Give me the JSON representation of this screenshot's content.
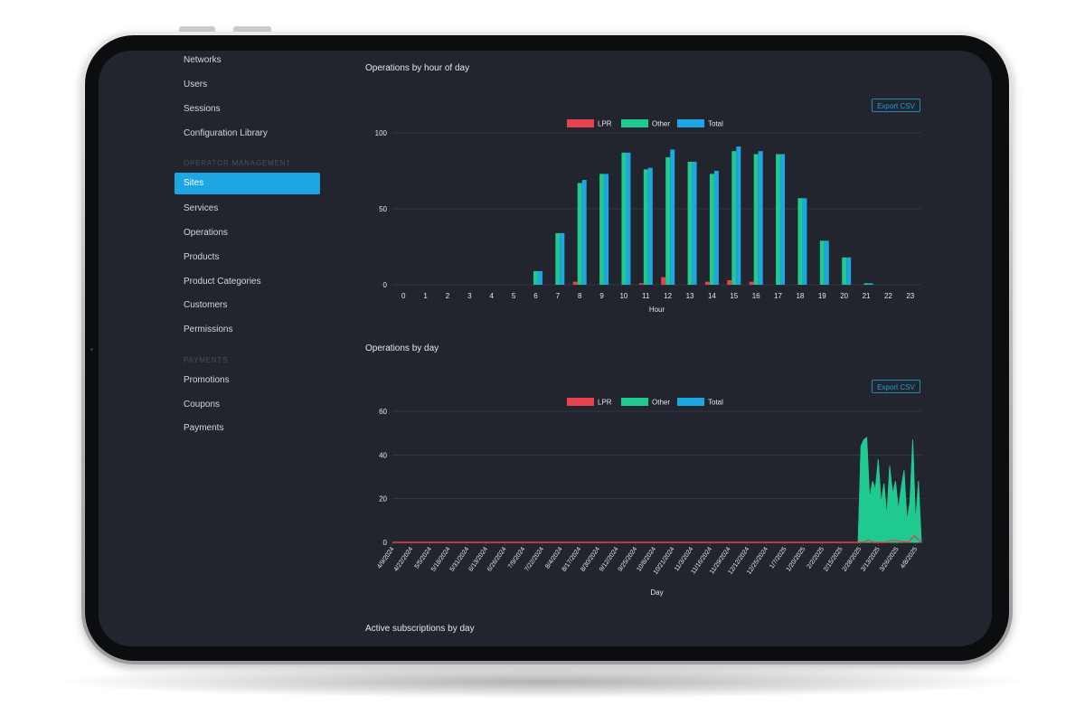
{
  "sidebar": {
    "items_top": [
      {
        "label": "Networks"
      },
      {
        "label": "Users"
      },
      {
        "label": "Sessions"
      },
      {
        "label": "Configuration Library"
      }
    ],
    "section_operator": "OPERATOR MANAGEMENT",
    "items_operator": [
      {
        "label": "Sites",
        "active": true
      },
      {
        "label": "Services"
      },
      {
        "label": "Operations"
      },
      {
        "label": "Products"
      },
      {
        "label": "Product Categories"
      },
      {
        "label": "Customers"
      },
      {
        "label": "Permissions"
      }
    ],
    "section_payments": "PAYMENTS",
    "items_payments": [
      {
        "label": "Promotions"
      },
      {
        "label": "Coupons"
      },
      {
        "label": "Payments"
      }
    ]
  },
  "hour_section": {
    "title": "Operations by hour of day",
    "export_label": "Export CSV"
  },
  "day_section": {
    "title": "Operations by day",
    "export_label": "Export CSV"
  },
  "subs_section": {
    "title": "Active subscriptions by day"
  },
  "colors": {
    "lpr": "#e8414f",
    "other": "#20c98d",
    "total": "#1ea6e2",
    "accent": "#1ea6e2",
    "background": "#22252d"
  },
  "chart_data": [
    {
      "type": "bar",
      "title": "Operations by hour of day",
      "xlabel": "Hour",
      "ylabel": "",
      "ylim": [
        0,
        100
      ],
      "yticks": [
        0,
        50,
        100
      ],
      "grid": true,
      "legend": "top-center",
      "categories": [
        "0",
        "1",
        "2",
        "3",
        "4",
        "5",
        "6",
        "7",
        "8",
        "9",
        "10",
        "11",
        "12",
        "13",
        "14",
        "15",
        "16",
        "17",
        "18",
        "19",
        "20",
        "21",
        "22",
        "23"
      ],
      "series": [
        {
          "name": "LPR",
          "color": "#e8414f",
          "values": [
            0,
            0,
            0,
            0,
            0,
            0,
            0,
            0,
            2,
            0,
            0,
            1,
            5,
            0,
            2,
            3,
            2,
            0,
            0,
            0,
            0,
            0,
            0,
            0
          ]
        },
        {
          "name": "Other",
          "color": "#20c98d",
          "values": [
            0,
            0,
            0,
            0,
            0,
            0,
            9,
            34,
            67,
            73,
            87,
            76,
            84,
            81,
            73,
            88,
            86,
            86,
            57,
            29,
            18,
            1,
            0,
            0
          ]
        },
        {
          "name": "Total",
          "color": "#1ea6e2",
          "values": [
            0,
            0,
            0,
            0,
            0,
            0,
            9,
            34,
            69,
            73,
            87,
            77,
            89,
            81,
            75,
            91,
            88,
            86,
            57,
            29,
            18,
            1,
            0,
            0
          ]
        }
      ]
    },
    {
      "type": "area",
      "title": "Operations by day",
      "xlabel": "Day",
      "ylabel": "",
      "ylim": [
        0,
        60
      ],
      "yticks": [
        0,
        20,
        40,
        60
      ],
      "grid": true,
      "legend": "top-center",
      "x_tick_labels": [
        "4/9/2024",
        "4/22/2024",
        "5/5/2024",
        "5/18/2024",
        "5/31/2024",
        "6/13/2024",
        "6/26/2024",
        "7/9/2024",
        "7/22/2024",
        "8/4/2024",
        "8/17/2024",
        "8/30/2024",
        "9/12/2024",
        "9/25/2024",
        "10/8/2024",
        "10/21/2024",
        "11/3/2024",
        "11/16/2024",
        "11/29/2024",
        "12/12/2024",
        "12/25/2024",
        "1/7/2025",
        "1/20/2025",
        "2/2/2025",
        "2/15/2025",
        "2/28/2025",
        "3/13/2025",
        "3/26/2025",
        "4/8/2025"
      ],
      "x_range": [
        "4/9/2024",
        "4/12/2025"
      ],
      "series": [
        {
          "name": "LPR",
          "color": "#e8414f",
          "points": [
            [
              "4/9/2024",
              0
            ],
            [
              "3/2/2025",
              0
            ],
            [
              "3/6/2025",
              1
            ],
            [
              "3/10/2025",
              0
            ],
            [
              "3/18/2025",
              0
            ],
            [
              "3/22/2025",
              1
            ],
            [
              "4/3/2025",
              0
            ],
            [
              "4/7/2025",
              3
            ],
            [
              "4/12/2025",
              0
            ]
          ]
        },
        {
          "name": "Other",
          "color": "#20c98d",
          "points": [
            [
              "4/9/2024",
              0
            ],
            [
              "2/27/2025",
              0
            ],
            [
              "3/1/2025",
              44
            ],
            [
              "3/3/2025",
              47
            ],
            [
              "3/5/2025",
              48
            ],
            [
              "3/7/2025",
              20
            ],
            [
              "3/9/2025",
              28
            ],
            [
              "3/11/2025",
              24
            ],
            [
              "3/13/2025",
              38
            ],
            [
              "3/15/2025",
              18
            ],
            [
              "3/17/2025",
              27
            ],
            [
              "3/19/2025",
              12
            ],
            [
              "3/21/2025",
              35
            ],
            [
              "3/23/2025",
              22
            ],
            [
              "3/25/2025",
              28
            ],
            [
              "3/27/2025",
              15
            ],
            [
              "3/29/2025",
              25
            ],
            [
              "3/31/2025",
              33
            ],
            [
              "4/2/2025",
              10
            ],
            [
              "4/4/2025",
              18
            ],
            [
              "4/6/2025",
              47
            ],
            [
              "4/8/2025",
              9
            ],
            [
              "4/10/2025",
              28
            ],
            [
              "4/12/2025",
              0
            ]
          ]
        },
        {
          "name": "Total",
          "color": "#1ea6e2",
          "points": [
            [
              "4/9/2024",
              0
            ],
            [
              "2/27/2025",
              0
            ],
            [
              "3/1/2025",
              44
            ],
            [
              "3/3/2025",
              47
            ],
            [
              "3/5/2025",
              48
            ],
            [
              "3/7/2025",
              20
            ],
            [
              "3/9/2025",
              28
            ],
            [
              "3/11/2025",
              24
            ],
            [
              "3/13/2025",
              38
            ],
            [
              "3/15/2025",
              18
            ],
            [
              "3/17/2025",
              27
            ],
            [
              "3/19/2025",
              12
            ],
            [
              "3/21/2025",
              35
            ],
            [
              "3/23/2025",
              22
            ],
            [
              "3/25/2025",
              28
            ],
            [
              "3/27/2025",
              15
            ],
            [
              "3/29/2025",
              25
            ],
            [
              "3/31/2025",
              33
            ],
            [
              "4/2/2025",
              10
            ],
            [
              "4/4/2025",
              18
            ],
            [
              "4/6/2025",
              47
            ],
            [
              "4/8/2025",
              9
            ],
            [
              "4/10/2025",
              28
            ],
            [
              "4/12/2025",
              0
            ]
          ]
        }
      ]
    }
  ]
}
